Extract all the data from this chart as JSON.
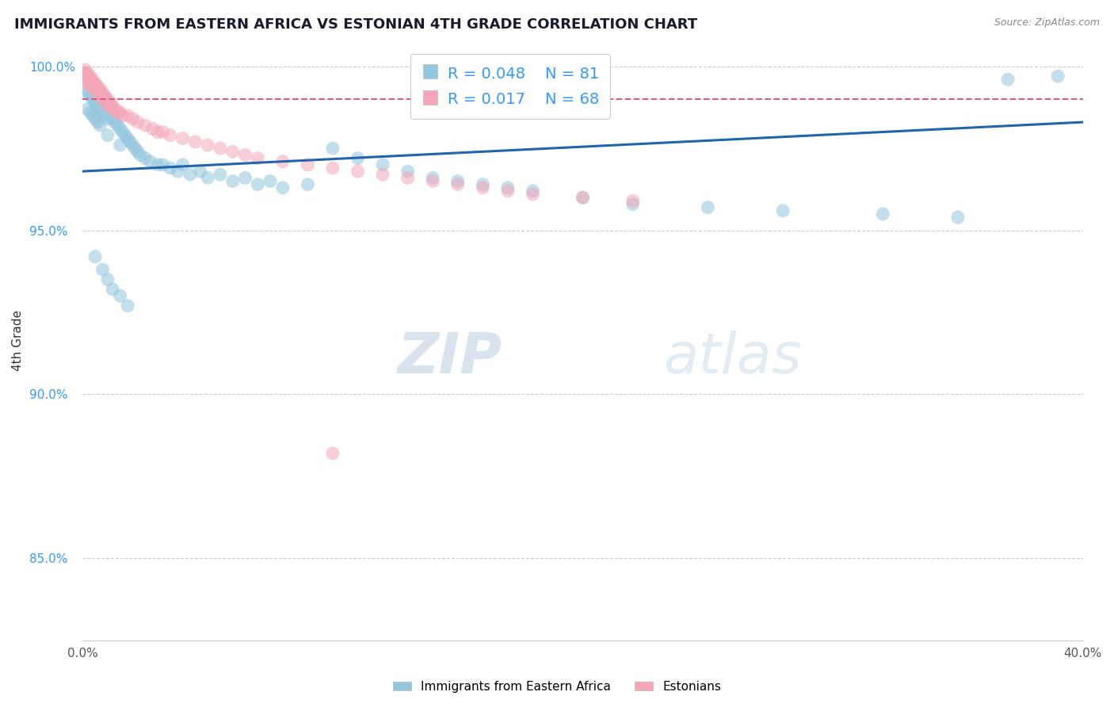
{
  "title": "IMMIGRANTS FROM EASTERN AFRICA VS ESTONIAN 4TH GRADE CORRELATION CHART",
  "source": "Source: ZipAtlas.com",
  "ylabel": "4th Grade",
  "xlim": [
    0.0,
    0.4
  ],
  "ylim": [
    0.825,
    1.008
  ],
  "yticks": [
    0.85,
    0.9,
    0.95,
    1.0
  ],
  "ytick_labels": [
    "85.0%",
    "90.0%",
    "95.0%",
    "100.0%"
  ],
  "legend_R_blue": "0.048",
  "legend_N_blue": "81",
  "legend_R_pink": "0.017",
  "legend_N_pink": "68",
  "legend_label_blue": "Immigrants from Eastern Africa",
  "legend_label_pink": "Estonians",
  "blue_color": "#92c5de",
  "pink_color": "#f4a6b8",
  "blue_line_color": "#2166ac",
  "pink_line_color": "#d6607a",
  "watermark_zip": "ZIP",
  "watermark_atlas": "atlas",
  "blue_trend_y0": 0.968,
  "blue_trend_y1": 0.983,
  "pink_trend_y0": 0.99,
  "pink_trend_y1": 0.99,
  "blue_scatter_x": [
    0.001,
    0.001,
    0.002,
    0.002,
    0.002,
    0.003,
    0.003,
    0.003,
    0.004,
    0.004,
    0.004,
    0.005,
    0.005,
    0.005,
    0.006,
    0.006,
    0.006,
    0.007,
    0.007,
    0.007,
    0.008,
    0.008,
    0.009,
    0.009,
    0.01,
    0.01,
    0.01,
    0.011,
    0.012,
    0.013,
    0.014,
    0.015,
    0.015,
    0.016,
    0.017,
    0.018,
    0.019,
    0.02,
    0.021,
    0.022,
    0.023,
    0.025,
    0.027,
    0.03,
    0.032,
    0.035,
    0.038,
    0.04,
    0.043,
    0.047,
    0.05,
    0.055,
    0.06,
    0.065,
    0.07,
    0.075,
    0.08,
    0.09,
    0.1,
    0.11,
    0.12,
    0.13,
    0.14,
    0.15,
    0.16,
    0.17,
    0.18,
    0.2,
    0.22,
    0.25,
    0.28,
    0.32,
    0.35,
    0.37,
    0.39,
    0.005,
    0.008,
    0.01,
    0.012,
    0.015,
    0.018
  ],
  "blue_scatter_y": [
    0.998,
    0.993,
    0.997,
    0.992,
    0.987,
    0.996,
    0.991,
    0.986,
    0.995,
    0.99,
    0.985,
    0.994,
    0.989,
    0.984,
    0.993,
    0.988,
    0.983,
    0.992,
    0.987,
    0.982,
    0.991,
    0.986,
    0.99,
    0.985,
    0.989,
    0.984,
    0.979,
    0.988,
    0.984,
    0.983,
    0.982,
    0.981,
    0.976,
    0.98,
    0.979,
    0.978,
    0.977,
    0.976,
    0.975,
    0.974,
    0.973,
    0.972,
    0.971,
    0.97,
    0.97,
    0.969,
    0.968,
    0.97,
    0.967,
    0.968,
    0.966,
    0.967,
    0.965,
    0.966,
    0.964,
    0.965,
    0.963,
    0.964,
    0.975,
    0.972,
    0.97,
    0.968,
    0.966,
    0.965,
    0.964,
    0.963,
    0.962,
    0.96,
    0.958,
    0.957,
    0.956,
    0.955,
    0.954,
    0.996,
    0.997,
    0.942,
    0.938,
    0.935,
    0.932,
    0.93,
    0.927
  ],
  "pink_scatter_x": [
    0.001,
    0.001,
    0.001,
    0.002,
    0.002,
    0.002,
    0.002,
    0.003,
    0.003,
    0.003,
    0.003,
    0.004,
    0.004,
    0.004,
    0.005,
    0.005,
    0.005,
    0.006,
    0.006,
    0.006,
    0.007,
    0.007,
    0.007,
    0.008,
    0.008,
    0.008,
    0.009,
    0.009,
    0.01,
    0.01,
    0.01,
    0.011,
    0.011,
    0.012,
    0.012,
    0.013,
    0.014,
    0.015,
    0.016,
    0.018,
    0.02,
    0.022,
    0.025,
    0.028,
    0.03,
    0.032,
    0.035,
    0.04,
    0.045,
    0.05,
    0.055,
    0.06,
    0.065,
    0.07,
    0.08,
    0.09,
    0.1,
    0.11,
    0.12,
    0.13,
    0.14,
    0.15,
    0.16,
    0.17,
    0.18,
    0.2,
    0.22,
    0.1
  ],
  "pink_scatter_y": [
    0.999,
    0.998,
    0.997,
    0.998,
    0.997,
    0.996,
    0.995,
    0.997,
    0.996,
    0.995,
    0.994,
    0.996,
    0.995,
    0.994,
    0.995,
    0.994,
    0.993,
    0.994,
    0.993,
    0.992,
    0.993,
    0.992,
    0.991,
    0.992,
    0.991,
    0.99,
    0.991,
    0.99,
    0.99,
    0.989,
    0.988,
    0.989,
    0.988,
    0.988,
    0.987,
    0.987,
    0.986,
    0.986,
    0.985,
    0.985,
    0.984,
    0.983,
    0.982,
    0.981,
    0.98,
    0.98,
    0.979,
    0.978,
    0.977,
    0.976,
    0.975,
    0.974,
    0.973,
    0.972,
    0.971,
    0.97,
    0.969,
    0.968,
    0.967,
    0.966,
    0.965,
    0.964,
    0.963,
    0.962,
    0.961,
    0.96,
    0.959,
    0.882
  ]
}
